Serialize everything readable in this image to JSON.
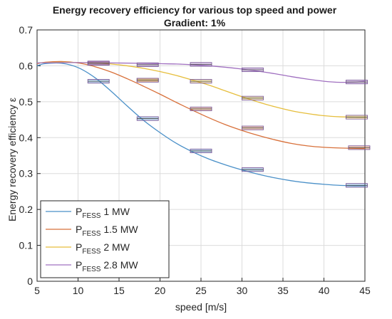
{
  "chart_data": {
    "type": "line",
    "title": "Energy recovery efficiency for various top speed and power",
    "subtitle": "Gradient: 1%",
    "xlabel": "speed [m/s]",
    "ylabel": "Energy recovery efficiency ε",
    "xlim": [
      5,
      45
    ],
    "ylim": [
      0,
      0.7
    ],
    "xticks": [
      "5",
      "10",
      "15",
      "20",
      "25",
      "30",
      "35",
      "40",
      "45"
    ],
    "yticks": [
      "0",
      "0.1",
      "0.2",
      "0.3",
      "0.4",
      "0.5",
      "0.6",
      "0.7"
    ],
    "grid": true,
    "legend_position": "bottom-left",
    "series": [
      {
        "name": "P_FESS 1 MW",
        "legend_main": "P",
        "legend_sub": "FESS",
        "legend_rest": " 1 MW",
        "color": "#4a90c8",
        "curve_x": [
          5,
          6,
          8,
          10,
          12,
          14,
          16,
          18,
          20,
          22,
          24,
          26,
          28,
          30,
          32,
          34,
          36,
          38,
          40,
          42,
          44,
          45
        ],
        "curve_y": [
          0.6,
          0.606,
          0.607,
          0.595,
          0.568,
          0.53,
          0.488,
          0.448,
          0.414,
          0.384,
          0.36,
          0.34,
          0.324,
          0.31,
          0.298,
          0.288,
          0.28,
          0.274,
          0.27,
          0.267,
          0.266,
          0.266
        ],
        "points_x": [
          12.5,
          18.5,
          25,
          31.3,
          44
        ],
        "points_y": [
          0.557,
          0.453,
          0.363,
          0.311,
          0.267
        ]
      },
      {
        "name": "P_FESS 1.5 MW",
        "legend_main": "P",
        "legend_sub": "FESS",
        "legend_rest": " 1.5 MW",
        "color": "#d8703a",
        "curve_x": [
          5,
          6,
          8,
          10,
          12,
          14,
          16,
          18,
          20,
          22,
          24,
          26,
          28,
          30,
          32,
          34,
          36,
          38,
          40,
          42,
          44,
          45
        ],
        "curve_y": [
          0.606,
          0.61,
          0.612,
          0.608,
          0.598,
          0.583,
          0.564,
          0.543,
          0.521,
          0.498,
          0.476,
          0.455,
          0.436,
          0.42,
          0.406,
          0.394,
          0.384,
          0.377,
          0.373,
          0.371,
          0.37,
          0.37
        ],
        "points_x": [
          12.5,
          18.5,
          25,
          31.3,
          44.3
        ],
        "points_y": [
          0.607,
          0.56,
          0.48,
          0.427,
          0.372
        ]
      },
      {
        "name": "P_FESS 2 MW",
        "legend_main": "P",
        "legend_sub": "FESS",
        "legend_rest": " 2 MW",
        "color": "#e6be3c",
        "curve_x": [
          5,
          8,
          10,
          12,
          14,
          16,
          18,
          20,
          22,
          24,
          26,
          28,
          30,
          32,
          34,
          36,
          38,
          40,
          42,
          44,
          45
        ],
        "curve_y": [
          0.608,
          0.61,
          0.609,
          0.608,
          0.605,
          0.6,
          0.593,
          0.584,
          0.573,
          0.56,
          0.546,
          0.53,
          0.514,
          0.499,
          0.486,
          0.475,
          0.467,
          0.461,
          0.458,
          0.457,
          0.457
        ],
        "points_x": [
          18.5,
          25,
          31.3,
          44
        ],
        "points_y": [
          0.56,
          0.557,
          0.51,
          0.457
        ]
      },
      {
        "name": "P_FESS 2.8 MW",
        "legend_main": "P",
        "legend_sub": "FESS",
        "legend_rest": " 2.8 MW",
        "color": "#a070c0",
        "curve_x": [
          5,
          10,
          14,
          18,
          20,
          22,
          24,
          26,
          28,
          30,
          32,
          34,
          36,
          38,
          40,
          42,
          44,
          45
        ],
        "curve_y": [
          0.608,
          0.609,
          0.608,
          0.607,
          0.606,
          0.605,
          0.603,
          0.6,
          0.596,
          0.591,
          0.585,
          0.578,
          0.57,
          0.563,
          0.557,
          0.554,
          0.555,
          0.557
        ],
        "points_x": [
          12.5,
          18.5,
          25,
          31.3,
          44
        ],
        "points_y": [
          0.608,
          0.603,
          0.604,
          0.589,
          0.555
        ]
      }
    ]
  }
}
